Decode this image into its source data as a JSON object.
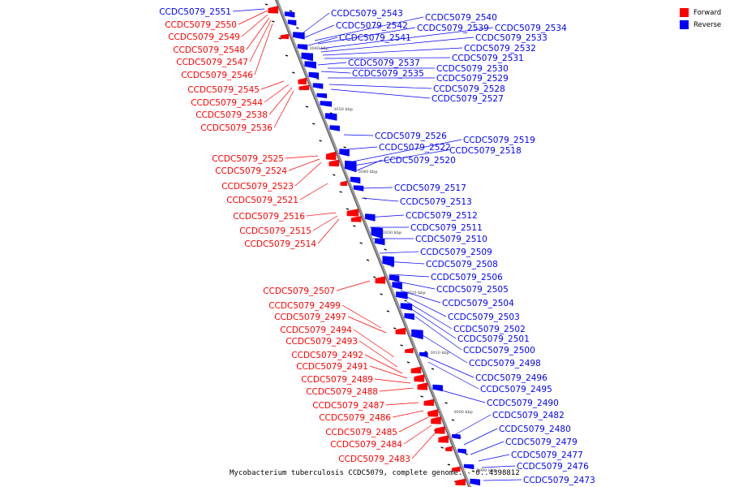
{
  "legend": {
    "items": [
      {
        "label": "Forward",
        "color": "#ff0000"
      },
      {
        "label": "Reverse",
        "color": "#0000ff"
      }
    ]
  },
  "caption": "Mycobacterium tuberculosis CCDC5079, complete genome. - 0..4398812",
  "colors": {
    "forward": "#ff0000",
    "reverse": "#0000ff",
    "backbone": "#888888"
  },
  "ticks": [
    "3060 kbp",
    "3050 kbp",
    "3040 kbp",
    "3030 kbp",
    "3020 kbp",
    "3010 kbp",
    "3000 kbp",
    "2990 kbp"
  ],
  "forward_labels": [
    "CCDC5079_2551",
    "CCDC5079_2550",
    "CCDC5079_2549",
    "CCDC5079_2548",
    "CCDC5079_2547",
    "CCDC5079_2546",
    "CCDC5079_2545",
    "CCDC5079_2544",
    "CCDC5079_2538",
    "CCDC5079_2536",
    "CCDC5079_2525",
    "CCDC5079_2524",
    "CCDC5079_2523",
    "CCDC5079_2521",
    "CCDC5079_2516",
    "CCDC5079_2515",
    "CCDC5079_2514",
    "CCDC5079_2507",
    "CCDC5079_2499",
    "CCDC5079_2497",
    "CCDC5079_2494",
    "CCDC5079_2493",
    "CCDC5079_2492",
    "CCDC5079_2491",
    "CCDC5079_2489",
    "CCDC5079_2488",
    "CCDC5079_2487",
    "CCDC5079_2486",
    "CCDC5079_2485",
    "CCDC5079_2484",
    "CCDC5079_2483"
  ],
  "reverse_labels": [
    "CCDC5079_2543",
    "CCDC5079_2540",
    "CCDC5079_2542",
    "CCDC5079_2539",
    "CCDC5079_2534",
    "CCDC5079_2541",
    "CCDC5079_2533",
    "CCDC5079_2532",
    "CCDC5079_2531",
    "CCDC5079_2537",
    "CCDC5079_2530",
    "CCDC5079_2535",
    "CCDC5079_2529",
    "CCDC5079_2528",
    "CCDC5079_2527",
    "CCDC5079_2526",
    "CCDC5079_2519",
    "CCDC5079_2522",
    "CCDC5079_2518",
    "CCDC5079_2520",
    "CCDC5079_2517",
    "CCDC5079_2513",
    "CCDC5079_2512",
    "CCDC5079_2511",
    "CCDC5079_2510",
    "CCDC5079_2509",
    "CCDC5079_2508",
    "CCDC5079_2506",
    "CCDC5079_2505",
    "CCDC5079_2504",
    "CCDC5079_2503",
    "CCDC5079_2502",
    "CCDC5079_2501",
    "CCDC5079_2500",
    "CCDC5079_2498",
    "CCDC5079_2496",
    "CCDC5079_2495",
    "CCDC5079_2490",
    "CCDC5079_2482",
    "CCDC5079_2480",
    "CCDC5079_2479",
    "CCDC5079_2477",
    "CCDC5079_2476",
    "CCDC5079_2473"
  ]
}
